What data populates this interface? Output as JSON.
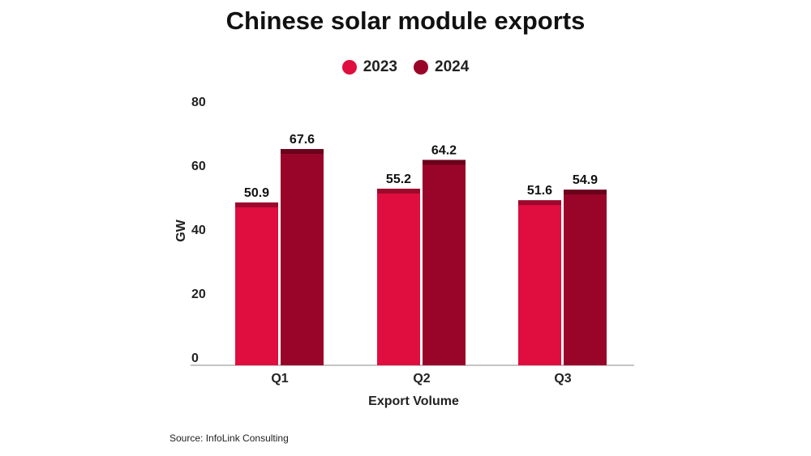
{
  "chart_data": {
    "type": "bar",
    "title": "Chinese solar module exports",
    "categories": [
      "Q1",
      "Q2",
      "Q3"
    ],
    "series": [
      {
        "name": "2023",
        "values": [
          50.9,
          55.2,
          51.6
        ],
        "color": "#e00d3f"
      },
      {
        "name": "2024",
        "values": [
          67.6,
          64.2,
          54.9
        ],
        "color": "#990528"
      }
    ],
    "xlabel": "Export Volume",
    "ylabel": "GW",
    "ylim": [
      0,
      80
    ],
    "yticks": [
      0,
      20,
      40,
      60,
      80
    ],
    "grid": false,
    "legend": "top"
  },
  "source": "Source: InfoLink Consulting"
}
